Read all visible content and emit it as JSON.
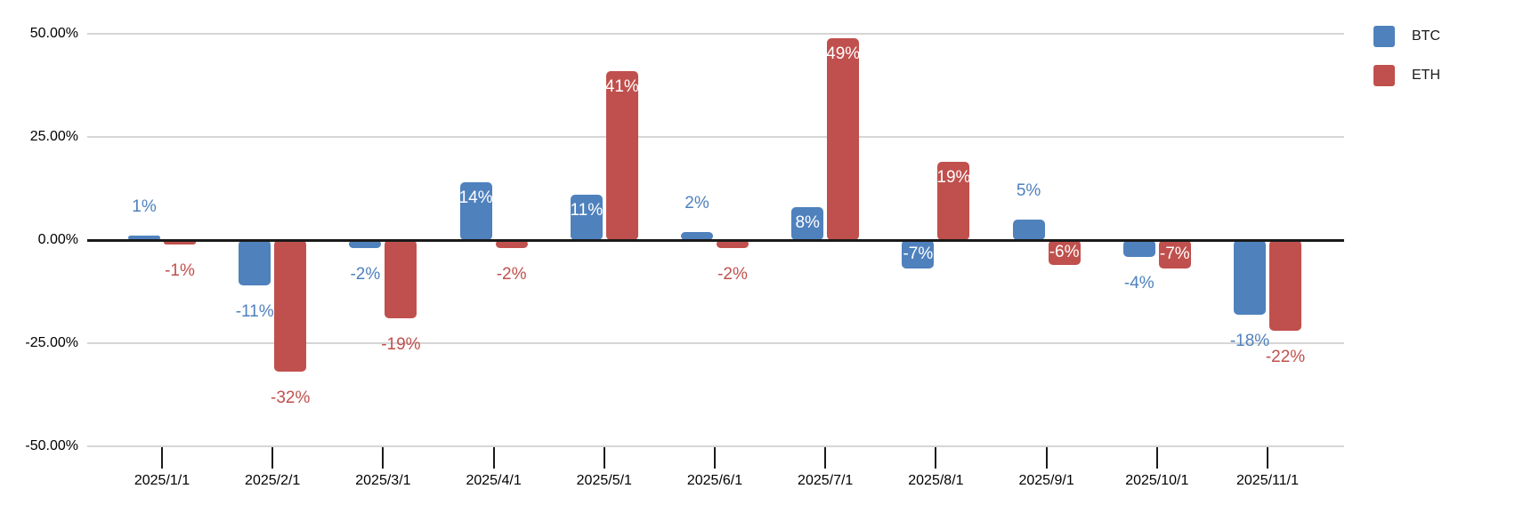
{
  "chart_data": {
    "type": "bar",
    "title": "",
    "categories": [
      "2025/1/1",
      "2025/2/1",
      "2025/3/1",
      "2025/4/1",
      "2025/5/1",
      "2025/6/1",
      "2025/7/1",
      "2025/8/1",
      "2025/9/1",
      "2025/10/1",
      "2025/11/1"
    ],
    "series": [
      {
        "name": "BTC",
        "color": "#4f81bd",
        "values": [
          1,
          -11,
          -2,
          14,
          11,
          2,
          8,
          -7,
          5,
          -4,
          -18
        ],
        "labels": [
          "1%",
          "-11%",
          "-2%",
          "14%",
          "11%",
          "2%",
          "8%",
          "-7%",
          "5%",
          "-4%",
          "-18%"
        ],
        "label_inside": [
          false,
          false,
          false,
          true,
          true,
          false,
          true,
          true,
          false,
          false,
          false
        ]
      },
      {
        "name": "ETH",
        "color": "#c0504d",
        "values": [
          -1,
          -32,
          -19,
          -2,
          41,
          -2,
          49,
          19,
          -6,
          -7,
          -22
        ],
        "labels": [
          "-1%",
          "-32%",
          "-19%",
          "-2%",
          "41%",
          "-2%",
          "49%",
          "19%",
          "-6%",
          "-7%",
          "-22%"
        ],
        "label_inside": [
          false,
          false,
          false,
          false,
          true,
          false,
          true,
          true,
          true,
          true,
          false
        ]
      }
    ],
    "xlabel": "",
    "ylabel": "",
    "ylim": [
      -50,
      50
    ],
    "y_ticks": [
      {
        "value": 50,
        "label": "50.00%"
      },
      {
        "value": 25,
        "label": "25.00%"
      },
      {
        "value": 0,
        "label": "0.00%"
      },
      {
        "value": -25,
        "label": "-25.00%"
      },
      {
        "value": -50,
        "label": "-50.00%"
      }
    ],
    "grid": true,
    "legend_position": "top-right",
    "inside_label_color": "#ffffff",
    "grid_color": "#d6d6d6",
    "zero_line_color": "#1a1a1a",
    "axis_text_color": "#000000"
  },
  "legend": {
    "items": [
      {
        "label": "BTC",
        "color": "#4f81bd"
      },
      {
        "label": "ETH",
        "color": "#c0504d"
      }
    ]
  }
}
